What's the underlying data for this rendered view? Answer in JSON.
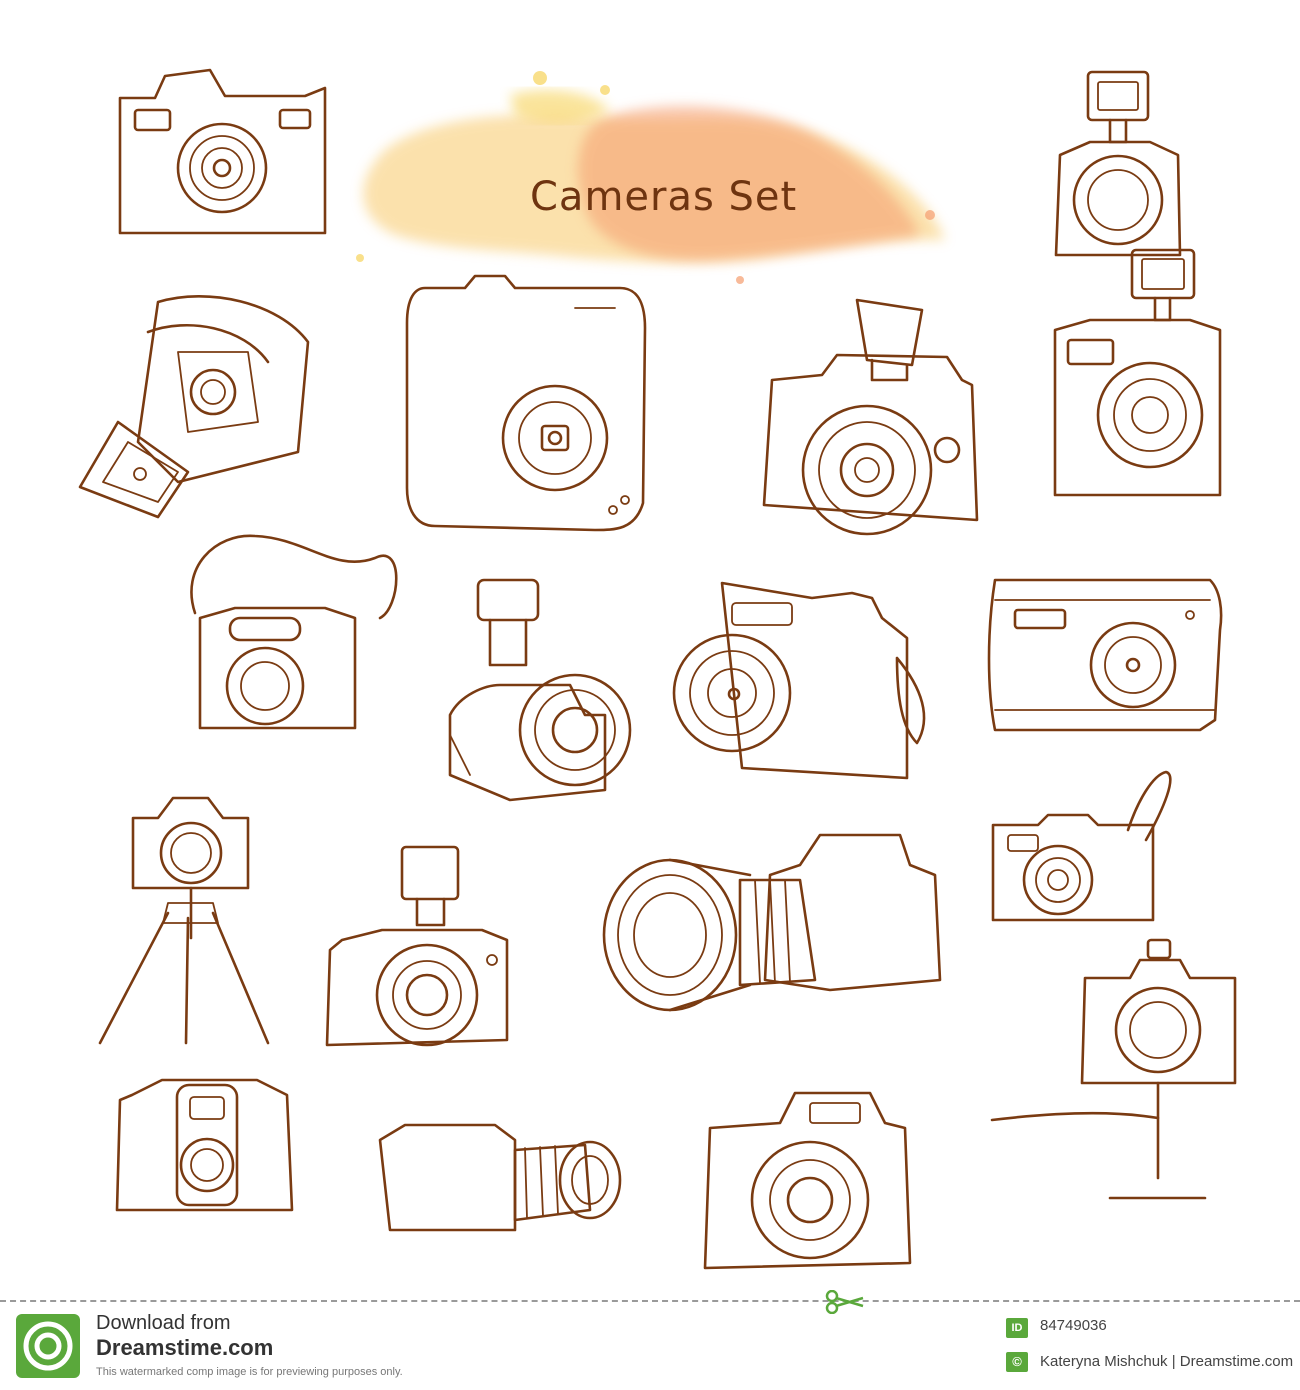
{
  "illustration": {
    "title": "Cameras Set",
    "icons": [
      "point-shoot-camera-icon",
      "flash-camera-icon",
      "instant-camera-icon",
      "compact-camera-icon",
      "dslr-flash-camera-icon",
      "retro-flash-camera-icon",
      "strap-camera-icon",
      "hotshoe-camera-icon",
      "bridge-camera-icon",
      "slim-camera-icon",
      "tripod-camera-icon",
      "flash-body-camera-icon",
      "telephoto-dslr-icon",
      "wrist-strap-camera-icon",
      "box-camera-icon",
      "zoom-lens-camera-icon",
      "dslr-camera-icon",
      "monopod-camera-icon"
    ],
    "colors": {
      "ink": "#7a3b12",
      "watercolor_yellow": "#f8c96a",
      "watercolor_orange": "#f59c6e"
    }
  },
  "footer": {
    "download_line1": "Download from",
    "download_line2": "Dreamstime.com",
    "download_note": "This watermarked comp image is for previewing purposes only.",
    "id_label": "ID",
    "id_value": "84749036",
    "copyright_symbol": "©",
    "credit": "Kateryna Mishchuk | Dreamstime.com"
  }
}
